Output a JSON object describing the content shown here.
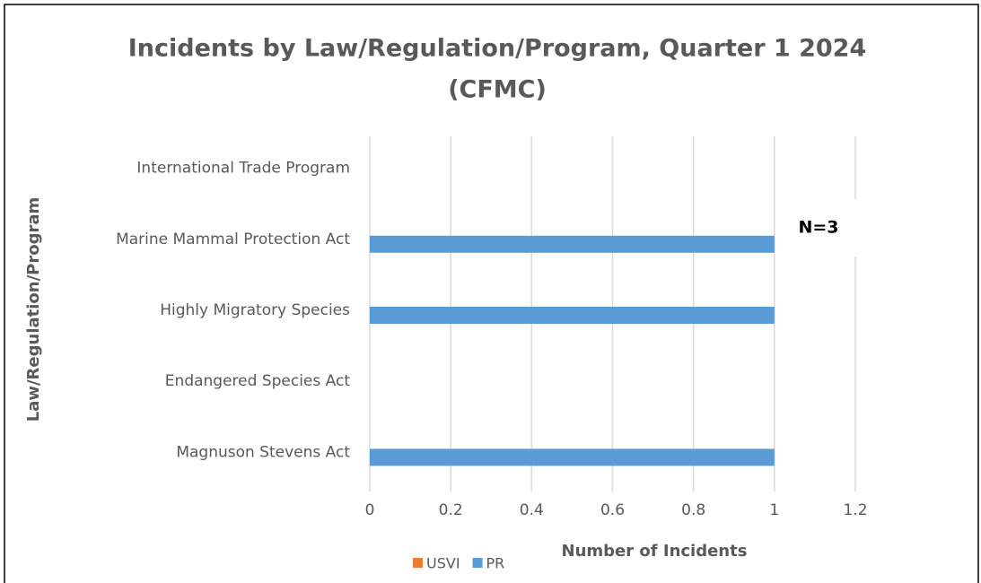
{
  "chart_data": {
    "type": "bar",
    "orientation": "horizontal",
    "title": "Incidents by Law/Regulation/Program, Quarter 1 2024",
    "subtitle": "(CFMC)",
    "categories": [
      "Magnuson Stevens Act",
      "Endangered Species Act",
      "Highly Migratory Species",
      "Marine Mammal Protection Act",
      "International Trade Program"
    ],
    "series": [
      {
        "name": "USVI",
        "color": "#ed7d31",
        "values": [
          0,
          0,
          0,
          0,
          0
        ]
      },
      {
        "name": "PR",
        "color": "#5b9bd5",
        "values": [
          1,
          0,
          1,
          1,
          0
        ]
      }
    ],
    "xlim": [
      0,
      1.2
    ],
    "xticks": [
      0,
      0.2,
      0.4,
      0.6,
      0.8,
      1,
      1.2
    ],
    "x_label": "Number of Incidents",
    "y_label": "Law/Regulation/Program",
    "annotation": "N=3",
    "grid": true,
    "legend": "bottom"
  }
}
